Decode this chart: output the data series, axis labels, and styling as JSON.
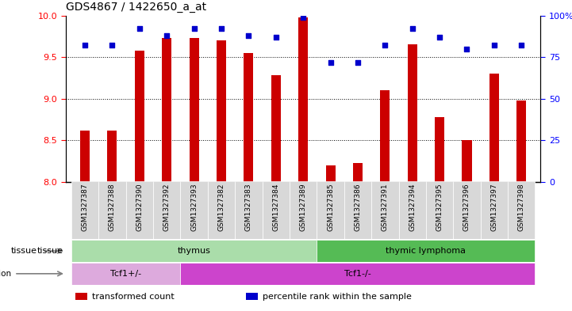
{
  "title": "GDS4867 / 1422650_a_at",
  "samples": [
    "GSM1327387",
    "GSM1327388",
    "GSM1327390",
    "GSM1327392",
    "GSM1327393",
    "GSM1327382",
    "GSM1327383",
    "GSM1327384",
    "GSM1327389",
    "GSM1327385",
    "GSM1327386",
    "GSM1327391",
    "GSM1327394",
    "GSM1327395",
    "GSM1327396",
    "GSM1327397",
    "GSM1327398"
  ],
  "transformed_count": [
    8.62,
    8.62,
    9.58,
    9.73,
    9.73,
    9.7,
    9.55,
    9.28,
    9.98,
    8.2,
    8.23,
    9.1,
    9.65,
    8.78,
    8.5,
    9.3,
    8.98
  ],
  "percentile_rank": [
    82,
    82,
    92,
    88,
    92,
    92,
    88,
    87,
    99,
    72,
    72,
    82,
    92,
    87,
    80,
    82,
    82
  ],
  "ylim_left": [
    8.0,
    10.0
  ],
  "ylim_right": [
    0,
    100
  ],
  "yticks_left": [
    8.0,
    8.5,
    9.0,
    9.5,
    10.0
  ],
  "yticks_right": [
    0,
    25,
    50,
    75,
    100
  ],
  "ytick_labels_right": [
    "0",
    "25",
    "50",
    "75",
    "100%"
  ],
  "grid_lines": [
    8.5,
    9.0,
    9.5
  ],
  "bar_color": "#cc0000",
  "dot_color": "#0000cc",
  "bar_width": 0.35,
  "tissue_groups": [
    {
      "label": "thymus",
      "start": 0,
      "end": 9,
      "color": "#aaddaa"
    },
    {
      "label": "thymic lymphoma",
      "start": 9,
      "end": 17,
      "color": "#55bb55"
    }
  ],
  "genotype_groups": [
    {
      "label": "Tcf1+/-",
      "start": 0,
      "end": 4,
      "color": "#ddaadd"
    },
    {
      "label": "Tcf1-/-",
      "start": 4,
      "end": 17,
      "color": "#cc44cc"
    }
  ],
  "legend_items": [
    {
      "label": "transformed count",
      "color": "#cc0000"
    },
    {
      "label": "percentile rank within the sample",
      "color": "#0000cc"
    }
  ],
  "background_color": "#ffffff",
  "plot_bg_color": "#ffffff",
  "xlabel_bg_color": "#d8d8d8"
}
